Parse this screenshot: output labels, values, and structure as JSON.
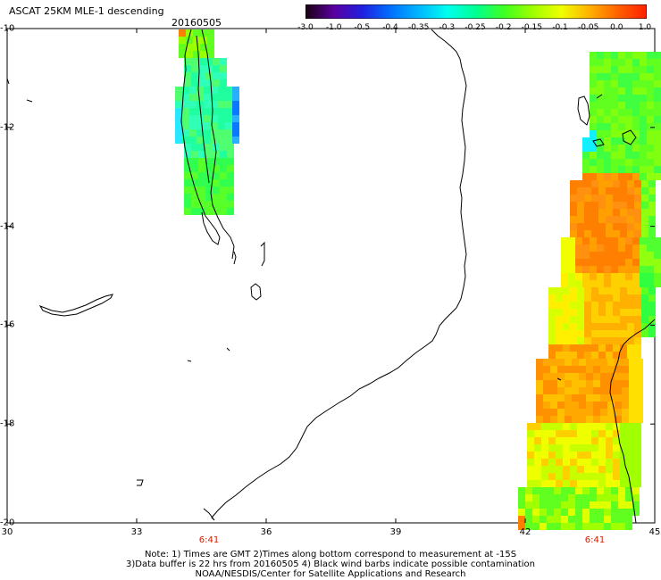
{
  "header": {
    "title": "ASCAT 25KM MLE-1 descending",
    "date": "20160505"
  },
  "colorbar": {
    "tick_labels": [
      "-3.0",
      "-1.0",
      "-0.5",
      "-0.4",
      "-0.35",
      "-0.3",
      "-0.25",
      "-0.2",
      "-0.15",
      "-0.1",
      "-0.05",
      "0.0",
      "1.0"
    ],
    "colors": [
      "#1a0010",
      "#5a00a0",
      "#2020e0",
      "#0070ff",
      "#00b8ff",
      "#00ffee",
      "#00ff90",
      "#40ff20",
      "#a0ff00",
      "#f0ff00",
      "#ffb000",
      "#ff6000",
      "#ff2000"
    ]
  },
  "map": {
    "x_ticks": [
      "30",
      "33",
      "36",
      "39",
      "42",
      "45"
    ],
    "y_ticks": [
      "-10",
      "-12",
      "-14",
      "-16",
      "-18",
      "-20"
    ],
    "swath_times": [
      "6:41",
      "6:41"
    ],
    "time_color": "#d02000",
    "land_color": "#ffffff",
    "coast_color": "#000000"
  },
  "notes": {
    "line1": "Note: 1) Times are GMT 2)Times along bottom correspond to measurement at -15S",
    "line2": "3)Data buffer is 22 hrs from 20160505 4) Black wind barbs indicate possible contamination",
    "line3": "NOAA/NESDIS/Center for Satellite Applications and Research"
  }
}
